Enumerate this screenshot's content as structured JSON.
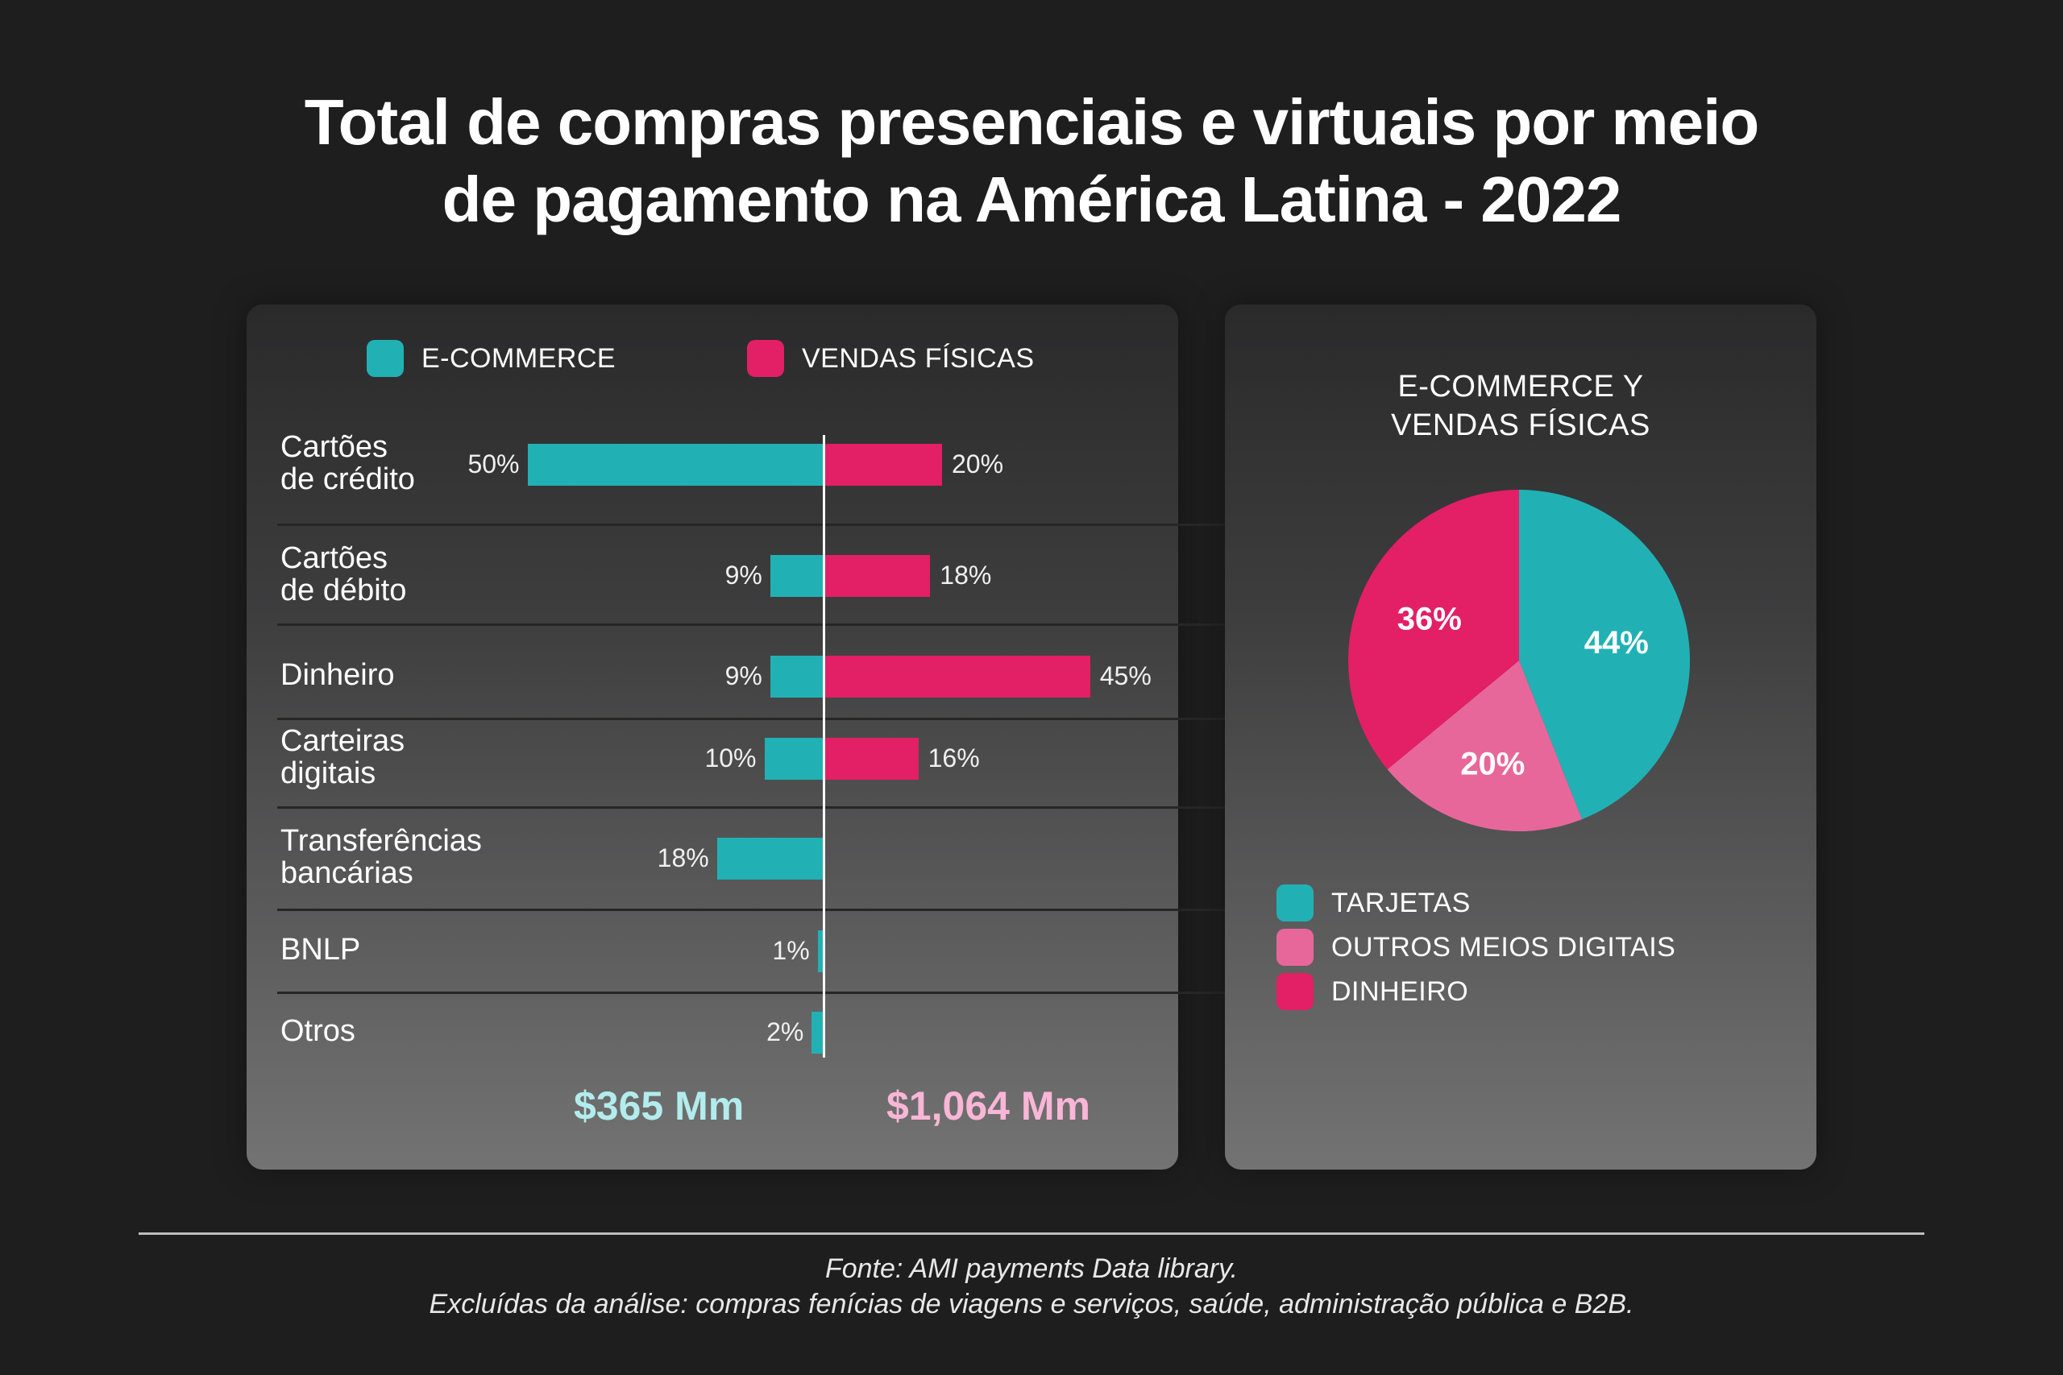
{
  "title": {
    "line1": "Total de compras presenciais e virtuais por meio",
    "line2": "de pagamento na América Latina - 2022"
  },
  "colors": {
    "ecommerce": "#21b1b4",
    "vendas_fisicas": "#e31f65",
    "outros_meios": "#e8679a",
    "total_ecommerce": "#b3ecec",
    "total_vendas": "#f9b6d6"
  },
  "bar_legend": [
    {
      "label": "E-COMMERCE",
      "color": "#21b1b4"
    },
    {
      "label": "VENDAS FÍSICAS",
      "color": "#e31f65"
    }
  ],
  "totals": {
    "ecommerce": "$365 Mm",
    "vendas_fisicas": "$1,064 Mm"
  },
  "pie_title": {
    "line1": "E-COMMERCE Y",
    "line2": "VENDAS FÍSICAS"
  },
  "pie_legend": [
    {
      "label": "TARJETAS",
      "color": "#21b1b4"
    },
    {
      "label": "OUTROS MEIOS DIGITAIS",
      "color": "#e8679a"
    },
    {
      "label": "DINHEIRO",
      "color": "#e31f65"
    }
  ],
  "footnote": {
    "source": "Fonte: AMI payments Data library.",
    "exclusions": "Excluídas da análise: compras fenícias de viagens e serviços, saúde, administração pública e B2B."
  },
  "chart_data": [
    {
      "type": "bar",
      "orientation": "diverging-horizontal",
      "title": "",
      "categories": [
        "Cartões\nde crédito",
        "Cartões\nde débito",
        "Dinheiro",
        "Carteiras\ndigitais",
        "Transferências\nbancárias",
        "BNLP",
        "Otros"
      ],
      "series": [
        {
          "name": "E-COMMERCE",
          "side": "left",
          "values": [
            50,
            9,
            9,
            10,
            18,
            1,
            2
          ],
          "labels": [
            "50%",
            "9%",
            "9%",
            "10%",
            "18%",
            "1%",
            "2%"
          ]
        },
        {
          "name": "VENDAS FÍSICAS",
          "side": "right",
          "values": [
            20,
            18,
            45,
            16,
            null,
            null,
            null
          ],
          "labels": [
            "20%",
            "18%",
            "45%",
            "16%",
            null,
            null,
            null
          ]
        }
      ],
      "legend": "top",
      "grid": false,
      "totals": {
        "E-COMMERCE": "$365 Mm",
        "VENDAS FÍSICAS": "$1,064 Mm"
      }
    },
    {
      "type": "pie",
      "title": "E-COMMERCE Y VENDAS FÍSICAS",
      "categories": [
        "TARJETAS",
        "OUTROS MEIOS DIGITAIS",
        "DINHEIRO"
      ],
      "values": [
        44,
        20,
        36
      ],
      "labels": [
        "44%",
        "20%",
        "36%"
      ],
      "legend": "bottom-left"
    }
  ]
}
